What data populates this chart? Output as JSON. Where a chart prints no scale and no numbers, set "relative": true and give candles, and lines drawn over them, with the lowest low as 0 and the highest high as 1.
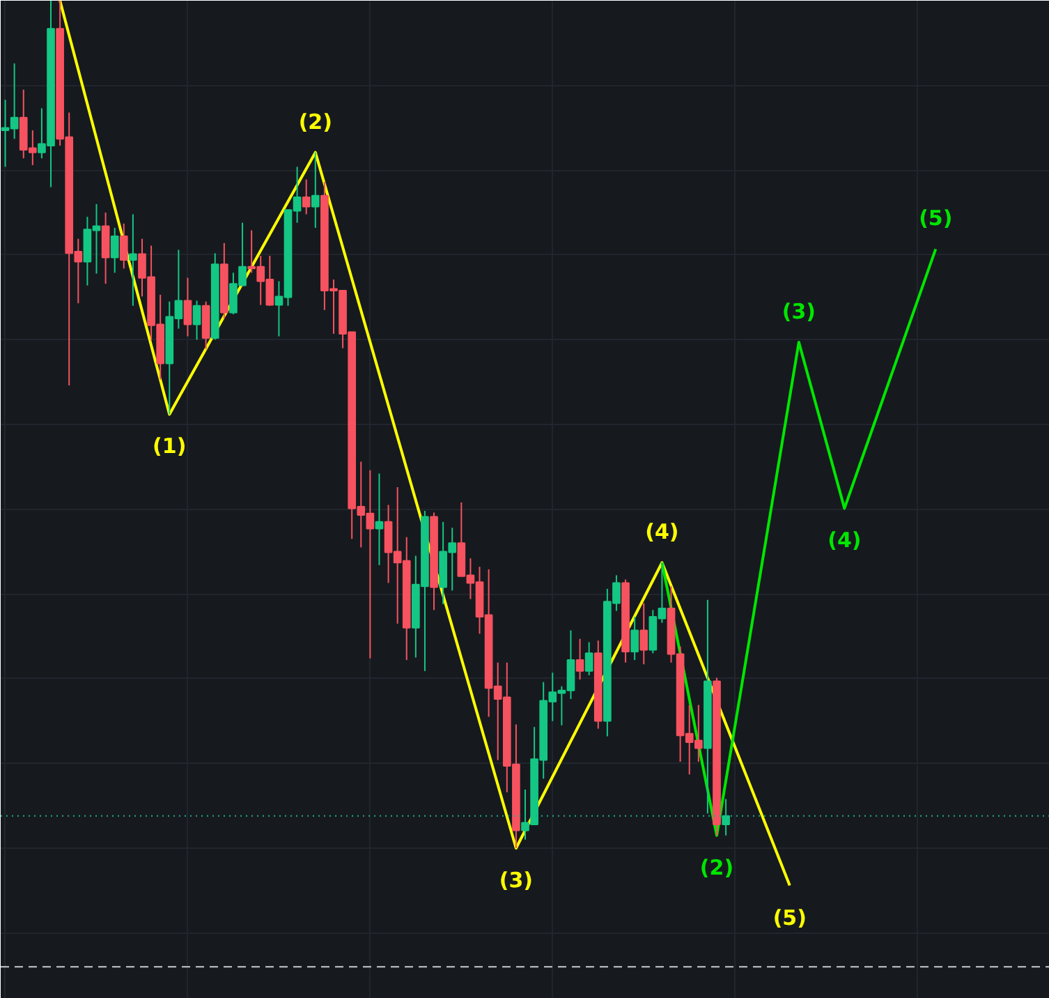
{
  "chart_data": {
    "type": "candlestick",
    "relative": true,
    "tick_labels": false,
    "grid": true,
    "categories": [
      null,
      null,
      null,
      null,
      null,
      null,
      null,
      null,
      null,
      null,
      null,
      null,
      null,
      null,
      null,
      null,
      null,
      null,
      null,
      null,
      null,
      null,
      null,
      null,
      null,
      null,
      null,
      null,
      null,
      null,
      null,
      null,
      null,
      null,
      null,
      null,
      null,
      null,
      null,
      null,
      null,
      null,
      null,
      null,
      null,
      null,
      null,
      null,
      null,
      null,
      null,
      null,
      null,
      null,
      null,
      null,
      null,
      null,
      null,
      null,
      null,
      null,
      null,
      null,
      null,
      null,
      null,
      null,
      null,
      null,
      null,
      null,
      null,
      null,
      null,
      null,
      null,
      null,
      null,
      null,
      null,
      null,
      null,
      null,
      null,
      null,
      null,
      null,
      null,
      null,
      null,
      null,
      null,
      null,
      null,
      null,
      null,
      null,
      null,
      null,
      null,
      null,
      null,
      null,
      null,
      null,
      null,
      null,
      null,
      null,
      null,
      null,
      null,
      null,
      null
    ],
    "ohlc": [
      [
        0.847,
        0.883,
        0.804,
        0.85
      ],
      [
        0.849,
        0.926,
        0.837,
        0.862
      ],
      [
        0.862,
        0.895,
        0.814,
        0.824
      ],
      [
        0.826,
        0.847,
        0.806,
        0.821
      ],
      [
        0.821,
        0.873,
        0.814,
        0.831
      ],
      [
        0.829,
        1.0,
        0.78,
        0.967
      ],
      [
        0.967,
        1.0,
        0.829,
        0.837
      ],
      [
        0.839,
        0.868,
        0.546,
        0.702
      ],
      [
        0.704,
        0.719,
        0.643,
        0.692
      ],
      [
        0.692,
        0.745,
        0.664,
        0.73
      ],
      [
        0.729,
        0.76,
        0.678,
        0.734
      ],
      [
        0.734,
        0.75,
        0.666,
        0.697
      ],
      [
        0.697,
        0.732,
        0.679,
        0.722
      ],
      [
        0.722,
        0.737,
        0.684,
        0.694
      ],
      [
        0.694,
        0.748,
        0.64,
        0.701
      ],
      [
        0.701,
        0.719,
        0.651,
        0.673
      ],
      [
        0.674,
        0.711,
        0.599,
        0.617
      ],
      [
        0.618,
        0.653,
        0.553,
        0.572
      ],
      [
        0.572,
        0.645,
        0.512,
        0.627
      ],
      [
        0.625,
        0.706,
        0.613,
        0.646
      ],
      [
        0.646,
        0.673,
        0.604,
        0.618
      ],
      [
        0.618,
        0.646,
        0.6,
        0.64
      ],
      [
        0.64,
        0.645,
        0.589,
        0.602
      ],
      [
        0.602,
        0.702,
        0.6,
        0.689
      ],
      [
        0.689,
        0.714,
        0.625,
        0.632
      ],
      [
        0.632,
        0.679,
        0.63,
        0.666
      ],
      [
        0.664,
        0.738,
        0.664,
        0.686
      ],
      [
        0.686,
        0.729,
        0.679,
        0.684
      ],
      [
        0.686,
        0.699,
        0.641,
        0.669
      ],
      [
        0.671,
        0.699,
        0.64,
        0.641
      ],
      [
        0.641,
        0.669,
        0.604,
        0.651
      ],
      [
        0.65,
        0.753,
        0.64,
        0.753
      ],
      [
        0.752,
        0.804,
        0.738,
        0.768
      ],
      [
        0.768,
        0.789,
        0.748,
        0.757
      ],
      [
        0.757,
        0.821,
        0.732,
        0.77
      ],
      [
        0.77,
        0.786,
        0.635,
        0.658
      ],
      [
        0.66,
        0.671,
        0.607,
        0.658
      ],
      [
        0.658,
        0.658,
        0.59,
        0.607
      ],
      [
        0.609,
        0.609,
        0.365,
        0.401
      ],
      [
        0.403,
        0.456,
        0.355,
        0.393
      ],
      [
        0.395,
        0.446,
        0.224,
        0.377
      ],
      [
        0.377,
        0.442,
        0.334,
        0.385
      ],
      [
        0.385,
        0.405,
        0.313,
        0.349
      ],
      [
        0.35,
        0.426,
        0.265,
        0.337
      ],
      [
        0.339,
        0.367,
        0.222,
        0.26
      ],
      [
        0.26,
        0.345,
        0.225,
        0.311
      ],
      [
        0.309,
        0.398,
        0.209,
        0.391
      ],
      [
        0.391,
        0.396,
        0.281,
        0.308
      ],
      [
        0.308,
        0.385,
        0.288,
        0.35
      ],
      [
        0.349,
        0.378,
        0.304,
        0.36
      ],
      [
        0.36,
        0.408,
        0.321,
        0.321
      ],
      [
        0.322,
        0.342,
        0.294,
        0.313
      ],
      [
        0.314,
        0.332,
        0.253,
        0.273
      ],
      [
        0.275,
        0.329,
        0.155,
        0.189
      ],
      [
        0.191,
        0.219,
        0.104,
        0.176
      ],
      [
        0.178,
        0.219,
        0.066,
        0.097
      ],
      [
        0.099,
        0.146,
        0.0,
        0.021
      ],
      [
        0.021,
        0.069,
        0.01,
        0.03
      ],
      [
        0.028,
        0.143,
        0.028,
        0.105
      ],
      [
        0.104,
        0.196,
        0.082,
        0.174
      ],
      [
        0.173,
        0.207,
        0.15,
        0.184
      ],
      [
        0.183,
        0.191,
        0.145,
        0.186
      ],
      [
        0.186,
        0.257,
        0.176,
        0.222
      ],
      [
        0.222,
        0.247,
        0.199,
        0.209
      ],
      [
        0.209,
        0.243,
        0.204,
        0.23
      ],
      [
        0.23,
        0.245,
        0.141,
        0.15
      ],
      [
        0.15,
        0.306,
        0.132,
        0.291
      ],
      [
        0.289,
        0.322,
        0.28,
        0.313
      ],
      [
        0.313,
        0.317,
        0.219,
        0.232
      ],
      [
        0.232,
        0.273,
        0.222,
        0.257
      ],
      [
        0.257,
        0.289,
        0.217,
        0.234
      ],
      [
        0.234,
        0.281,
        0.23,
        0.273
      ],
      [
        0.271,
        0.337,
        0.266,
        0.283
      ],
      [
        0.283,
        0.309,
        0.219,
        0.229
      ],
      [
        0.229,
        0.238,
        0.102,
        0.133
      ],
      [
        0.135,
        0.169,
        0.087,
        0.125
      ],
      [
        0.127,
        0.169,
        0.102,
        0.118
      ],
      [
        0.118,
        0.293,
        0.041,
        0.197
      ],
      [
        0.197,
        0.201,
        0.015,
        0.028
      ],
      [
        0.028,
        0.058,
        0.015,
        0.038
      ],
      null,
      null,
      null,
      null,
      null,
      null,
      null,
      null,
      null,
      null,
      null,
      null,
      null,
      null,
      null,
      null,
      null,
      null,
      null,
      null,
      null,
      null,
      null,
      null,
      null,
      null,
      null,
      null,
      null,
      null,
      null,
      null,
      null,
      null,
      null
    ],
    "colors": [
      "#14c784",
      "#14c784",
      "#f7525f",
      "#f7525f",
      "#14c784",
      "#14c784",
      "#f7525f",
      "#f7525f",
      "#f7525f",
      "#14c784",
      "#14c784",
      "#f7525f",
      "#14c784",
      "#f7525f",
      "#14c784",
      "#f7525f",
      "#f7525f",
      "#f7525f",
      "#14c784",
      "#14c784",
      "#f7525f",
      "#14c784",
      "#f7525f",
      "#14c784",
      "#f7525f",
      "#14c784",
      "#14c784",
      "#f7525f",
      "#f7525f",
      "#f7525f",
      "#14c784",
      "#14c784",
      "#14c784",
      "#f7525f",
      "#14c784",
      "#f7525f",
      "#f7525f",
      "#f7525f",
      "#f7525f",
      "#f7525f",
      "#f7525f",
      "#14c784",
      "#f7525f",
      "#f7525f",
      "#f7525f",
      "#14c784",
      "#14c784",
      "#f7525f",
      "#14c784",
      "#14c784",
      "#f7525f",
      "#f7525f",
      "#f7525f",
      "#f7525f",
      "#f7525f",
      "#f7525f",
      "#f7525f",
      "#14c784",
      "#14c784",
      "#14c784",
      "#14c784",
      "#14c784",
      "#14c784",
      "#f7525f",
      "#14c784",
      "#f7525f",
      "#14c784",
      "#14c784",
      "#f7525f",
      "#14c784",
      "#f7525f",
      "#14c784",
      "#14c784",
      "#f7525f",
      "#f7525f",
      "#f7525f",
      "#f7525f",
      "#14c784",
      "#f7525f",
      "#14c784",
      null,
      null,
      null,
      null,
      null,
      null,
      null,
      null,
      null,
      null,
      null,
      null,
      null,
      null,
      null,
      null,
      null,
      null,
      null,
      null,
      null,
      null,
      null,
      null,
      null,
      null,
      null,
      null,
      null,
      null,
      null,
      null,
      null,
      null,
      null
    ],
    "series": [
      {
        "type": "line",
        "color": "#ffff00",
        "values": [
          null,
          null,
          null,
          null,
          null,
          null,
          1.0,
          null,
          null,
          null,
          null,
          null,
          null,
          null,
          null,
          null,
          null,
          null,
          0.512,
          null,
          null,
          null,
          null,
          null,
          null,
          null,
          null,
          null,
          null,
          null,
          null,
          null,
          null,
          null,
          0.821,
          null,
          null,
          null,
          null,
          null,
          null,
          null,
          null,
          null,
          null,
          null,
          null,
          null,
          null,
          null,
          null,
          null,
          null,
          null,
          null,
          null,
          0.0,
          null,
          null,
          null,
          null,
          null,
          null,
          null,
          null,
          null,
          null,
          null,
          null,
          null,
          null,
          null,
          0.337,
          null,
          null,
          null,
          null,
          null,
          null,
          null,
          null,
          null,
          null,
          null,
          null,
          null,
          -0.044,
          null,
          null,
          null,
          null,
          null,
          null,
          null,
          null,
          null,
          null,
          null,
          null,
          null,
          null,
          null,
          null,
          null,
          null,
          null,
          null,
          null,
          null,
          null,
          null,
          null,
          null,
          null,
          null
        ]
      },
      {
        "type": "line",
        "color": "#00e600",
        "values": [
          null,
          null,
          null,
          null,
          null,
          null,
          null,
          null,
          null,
          null,
          null,
          null,
          null,
          null,
          null,
          null,
          null,
          null,
          null,
          null,
          null,
          null,
          null,
          null,
          null,
          null,
          null,
          null,
          null,
          null,
          null,
          null,
          null,
          null,
          null,
          null,
          null,
          null,
          null,
          null,
          null,
          null,
          null,
          null,
          null,
          null,
          null,
          null,
          null,
          null,
          null,
          null,
          null,
          null,
          null,
          null,
          null,
          null,
          null,
          null,
          null,
          null,
          null,
          null,
          null,
          null,
          null,
          null,
          null,
          null,
          null,
          null,
          0.337,
          null,
          null,
          null,
          null,
          null,
          0.015,
          null,
          null,
          null,
          null,
          null,
          null,
          null,
          null,
          0.597,
          null,
          null,
          null,
          null,
          0.401,
          null,
          null,
          null,
          null,
          null,
          null,
          null,
          null,
          null,
          0.707,
          null,
          null,
          null,
          null,
          null,
          null,
          null,
          null,
          null,
          null,
          null,
          null
        ]
      }
    ],
    "annotations": [
      {
        "text": "(1)",
        "y": 0.512
      },
      {
        "text": "(2)",
        "y": 0.821
      },
      {
        "text": "(3)",
        "y": 0.0
      },
      {
        "text": "(4)",
        "y": 0.337
      },
      {
        "text": "(5)",
        "y": -0.044
      },
      {
        "text": "(2)",
        "y": 0.015
      },
      {
        "text": "(3)",
        "y": 0.597
      },
      {
        "text": "(4)",
        "y": 0.401
      },
      {
        "text": "(5)",
        "y": 0.707
      }
    ],
    "ref_lines": [
      {
        "axis": "y",
        "value": 0.038,
        "color": "#22ab94",
        "line_style": "dotted"
      },
      {
        "axis": "y",
        "value": -0.14,
        "color": "#c8cad0",
        "line_style": "dashed"
      }
    ]
  }
}
